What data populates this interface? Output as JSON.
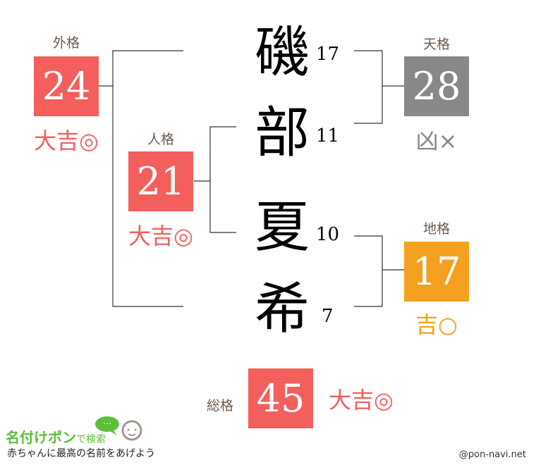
{
  "name_chars": [
    {
      "char": "磯",
      "strokes": "17"
    },
    {
      "char": "部",
      "strokes": "11"
    },
    {
      "char": "夏",
      "strokes": "10"
    },
    {
      "char": "希",
      "strokes": "7"
    }
  ],
  "gaikaku": {
    "label": "外格",
    "value": "24",
    "fortune": "大吉◎",
    "color": "#f25f5c"
  },
  "jinkaku": {
    "label": "人格",
    "value": "21",
    "fortune": "大吉◎",
    "color": "#f25f5c"
  },
  "tenkaku": {
    "label": "天格",
    "value": "28",
    "fortune": "凶×",
    "color": "#888888"
  },
  "chikaku": {
    "label": "地格",
    "value": "17",
    "fortune": "吉○",
    "color": "#f5a020"
  },
  "soukaku": {
    "label": "総格",
    "value": "45",
    "fortune": "大吉◎",
    "color": "#f25f5c"
  },
  "logo": {
    "title": "名付けポン",
    "suffix": "で検索",
    "tagline": "赤ちゃんに最高の名前をあげよう",
    "bubble": "…"
  },
  "credit": "@pon-navi.net"
}
